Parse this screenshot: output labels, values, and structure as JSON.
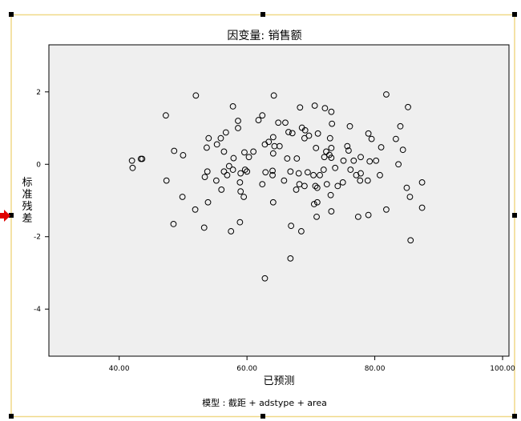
{
  "chart_data": {
    "type": "scatter",
    "title": "因变量: 销售额",
    "xlabel": "已预测",
    "ylabel": "标准残差",
    "footnote": "模型 : 截距 + adstype + area",
    "xlim": [
      29,
      101
    ],
    "ylim": [
      -5.3,
      3.3
    ],
    "xticks": [
      40,
      60,
      80,
      100
    ],
    "xtick_labels": [
      "40.00",
      "60.00",
      "80.00",
      "100.00"
    ],
    "yticks": [
      -4,
      -2,
      0,
      2
    ],
    "ytick_labels": [
      "-4",
      "-2",
      "0",
      "2"
    ],
    "grid": false,
    "legend": "none",
    "colors": {
      "plot_background": "#efefef",
      "marker_edge": "#000000",
      "selection_frame": "#f0d988",
      "indicator_arrow": "#e00000"
    },
    "points": [
      [
        52.0,
        1.9
      ],
      [
        64.2,
        1.9
      ],
      [
        81.8,
        1.93
      ],
      [
        57.8,
        1.6
      ],
      [
        68.3,
        1.57
      ],
      [
        70.6,
        1.62
      ],
      [
        72.2,
        1.55
      ],
      [
        73.2,
        1.45
      ],
      [
        85.2,
        1.58
      ],
      [
        47.3,
        1.35
      ],
      [
        61.8,
        1.22
      ],
      [
        62.4,
        1.35
      ],
      [
        58.6,
        1.2
      ],
      [
        73.3,
        1.12
      ],
      [
        64.9,
        1.15
      ],
      [
        66.0,
        1.15
      ],
      [
        68.6,
        1.01
      ],
      [
        69.1,
        0.94
      ],
      [
        76.1,
        1.05
      ],
      [
        84.0,
        1.05
      ],
      [
        56.7,
        0.88
      ],
      [
        58.6,
        1.0
      ],
      [
        66.5,
        0.89
      ],
      [
        67.1,
        0.86
      ],
      [
        71.1,
        0.85
      ],
      [
        79.0,
        0.85
      ],
      [
        79.5,
        0.7
      ],
      [
        54.0,
        0.72
      ],
      [
        55.9,
        0.72
      ],
      [
        63.4,
        0.62
      ],
      [
        64.1,
        0.75
      ],
      [
        69.0,
        0.72
      ],
      [
        69.7,
        0.79
      ],
      [
        73.0,
        0.72
      ],
      [
        83.3,
        0.7
      ],
      [
        53.7,
        0.46
      ],
      [
        55.3,
        0.55
      ],
      [
        56.4,
        0.35
      ],
      [
        61.0,
        0.35
      ],
      [
        62.8,
        0.55
      ],
      [
        64.3,
        0.5
      ],
      [
        65.1,
        0.5
      ],
      [
        70.8,
        0.45
      ],
      [
        72.4,
        0.35
      ],
      [
        73.2,
        0.45
      ],
      [
        75.7,
        0.5
      ],
      [
        75.9,
        0.38
      ],
      [
        81.0,
        0.47
      ],
      [
        84.4,
        0.4
      ],
      [
        48.6,
        0.37
      ],
      [
        50.0,
        0.25
      ],
      [
        57.9,
        0.17
      ],
      [
        59.6,
        0.33
      ],
      [
        60.3,
        0.2
      ],
      [
        64.1,
        0.3
      ],
      [
        66.3,
        0.16
      ],
      [
        67.8,
        0.16
      ],
      [
        72.1,
        0.2
      ],
      [
        72.9,
        0.26
      ],
      [
        73.2,
        0.18
      ],
      [
        75.1,
        0.1
      ],
      [
        76.7,
        0.1
      ],
      [
        77.8,
        0.2
      ],
      [
        79.2,
        0.08
      ],
      [
        80.2,
        0.1
      ],
      [
        83.7,
        0.0
      ],
      [
        42.0,
        0.1
      ],
      [
        43.4,
        0.15
      ],
      [
        43.6,
        0.15
      ],
      [
        42.1,
        -0.1
      ],
      [
        57.2,
        -0.05
      ],
      [
        57.8,
        -0.15
      ],
      [
        56.4,
        -0.2
      ],
      [
        59.0,
        -0.25
      ],
      [
        59.7,
        -0.15
      ],
      [
        60.0,
        -0.2
      ],
      [
        62.9,
        -0.22
      ],
      [
        64.0,
        -0.18
      ],
      [
        64.0,
        -0.3
      ],
      [
        66.8,
        -0.2
      ],
      [
        68.1,
        -0.25
      ],
      [
        69.5,
        -0.22
      ],
      [
        70.4,
        -0.3
      ],
      [
        71.4,
        -0.3
      ],
      [
        72.0,
        -0.15
      ],
      [
        73.8,
        -0.1
      ],
      [
        76.2,
        -0.15
      ],
      [
        77.1,
        -0.3
      ],
      [
        77.8,
        -0.25
      ],
      [
        78.9,
        -0.45
      ],
      [
        80.8,
        -0.3
      ],
      [
        47.4,
        -0.45
      ],
      [
        53.8,
        -0.2
      ],
      [
        53.4,
        -0.35
      ],
      [
        55.2,
        -0.45
      ],
      [
        56.9,
        -0.3
      ],
      [
        58.9,
        -0.5
      ],
      [
        59.0,
        -0.75
      ],
      [
        59.5,
        -0.9
      ],
      [
        56.0,
        -0.7
      ],
      [
        62.4,
        -0.55
      ],
      [
        65.8,
        -0.45
      ],
      [
        67.7,
        -0.7
      ],
      [
        68.2,
        -0.55
      ],
      [
        69.0,
        -0.6
      ],
      [
        70.7,
        -0.6
      ],
      [
        71.0,
        -0.65
      ],
      [
        72.5,
        -0.55
      ],
      [
        73.1,
        -0.85
      ],
      [
        74.2,
        -0.6
      ],
      [
        75.0,
        -0.5
      ],
      [
        77.7,
        -0.45
      ],
      [
        85.0,
        -0.65
      ],
      [
        87.4,
        -0.5
      ],
      [
        49.9,
        -0.9
      ],
      [
        53.9,
        -1.05
      ],
      [
        51.9,
        -1.25
      ],
      [
        64.1,
        -1.05
      ],
      [
        70.5,
        -1.1
      ],
      [
        71.0,
        -1.05
      ],
      [
        73.2,
        -1.3
      ],
      [
        79.0,
        -1.4
      ],
      [
        77.4,
        -1.45
      ],
      [
        81.8,
        -1.25
      ],
      [
        85.5,
        -0.9
      ],
      [
        87.4,
        -1.2
      ],
      [
        48.5,
        -1.65
      ],
      [
        53.3,
        -1.75
      ],
      [
        57.5,
        -1.85
      ],
      [
        58.9,
        -1.6
      ],
      [
        66.9,
        -1.7
      ],
      [
        68.5,
        -1.85
      ],
      [
        70.9,
        -1.45
      ],
      [
        85.6,
        -2.1
      ],
      [
        66.8,
        -2.6
      ],
      [
        62.8,
        -3.15
      ]
    ]
  }
}
